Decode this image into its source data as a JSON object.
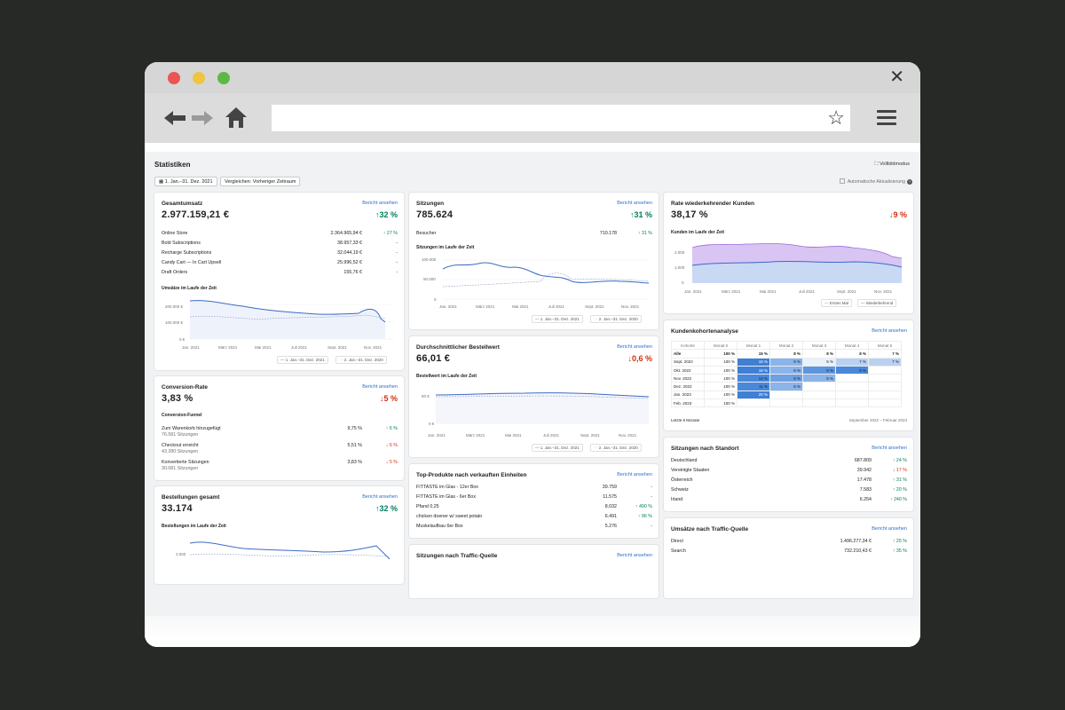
{
  "page": {
    "title": "Statistiken",
    "fullscreen": "Vollbildmodus",
    "date_range": "1. Jan.–31. Dez. 2021",
    "compare": "Vergleichen: Vorheriger Zeitraum",
    "auto_update": "Automatische Aktualisierung"
  },
  "common": {
    "view_report": "Bericht ansehen"
  },
  "legend": {
    "current": "1. Jan.–31. Dez. 2021",
    "previous": "2. Jan.–31. Dez. 2020"
  },
  "months_axis": [
    "Jan. 2021",
    "März 2021",
    "Mai 2021",
    "Juli 2021",
    "Sept. 2021",
    "Nov. 2021"
  ],
  "sales": {
    "title": "Gesamtumsatz",
    "value": "2.977.159,21 €",
    "change": "32 %",
    "rows": [
      {
        "label": "Online Store",
        "value": "2.364.965,94 €",
        "change": "27 %"
      },
      {
        "label": "Bold Subscriptions",
        "value": "38.957,33 €",
        "change": "-"
      },
      {
        "label": "Recharge Subscriptions",
        "value": "32.044,19 €",
        "change": "-"
      },
      {
        "label": "Candy Cart — In Cart Upsell",
        "value": "25.996,52 €",
        "change": "-"
      },
      {
        "label": "Draft Orders",
        "value": "155,76 €",
        "change": "-"
      }
    ],
    "chart_label": "Umsätze im Laufe der Zeit",
    "y_ticks": [
      "200.000 €",
      "100.000 €",
      "0 €"
    ]
  },
  "conversion": {
    "title": "Conversion-Rate",
    "value": "3,83 %",
    "change": "5 %",
    "funnel_label": "Conversion-Funnel",
    "rows": [
      {
        "label": "Zum Warenkorb hinzugefügt",
        "sub": "76.581 Sitzungen",
        "value": "9,75 %",
        "change": "6 %",
        "dir": "up"
      },
      {
        "label": "Checkout erreicht",
        "sub": "43.280 Sitzungen",
        "value": "5,51 %",
        "change": "6 %",
        "dir": "down"
      },
      {
        "label": "Konvertierte Sitzungen",
        "sub": "30.081 Sitzungen",
        "value": "3,83 %",
        "change": "5 %",
        "dir": "down"
      }
    ]
  },
  "orders": {
    "title": "Bestellungen gesamt",
    "value": "33.174",
    "change": "32 %",
    "chart_label": "Bestellungen im Laufe der Zeit",
    "y_tick": "2.000"
  },
  "sessions": {
    "title": "Sitzungen",
    "value": "785.624",
    "change": "31 %",
    "visitors_label": "Besucher",
    "visitors_value": "710.178",
    "visitors_change": "31 %",
    "chart_label": "Sitzungen im Laufe der Zeit",
    "y_ticks": [
      "100.000",
      "50.000",
      "0"
    ]
  },
  "aov": {
    "title": "Durchschnittlicher Bestellwert",
    "value": "66,01 €",
    "change": "0,6 %",
    "chart_label": "Bestellwert im Laufe der Zeit",
    "y_ticks": [
      "50 €",
      "0 €"
    ]
  },
  "top_products": {
    "title": "Top-Produkte nach verkauften Einheiten",
    "rows": [
      {
        "label": "FITTASTE im Glas - 12er Box",
        "value": "39.759",
        "change": "-"
      },
      {
        "label": "FITTASTE im Glas - 6er Box",
        "value": "11.575",
        "change": "-"
      },
      {
        "label": "Pfand 0,25",
        "value": "8.032",
        "change": "490 %"
      },
      {
        "label": "chicken doener w/ sweet potato",
        "value": "6.491",
        "change": "96 %"
      },
      {
        "label": "Muskelaufbau 6er Box",
        "value": "5.276",
        "change": "-"
      }
    ]
  },
  "traffic_sessions": {
    "title": "Sitzungen nach Traffic-Quelle"
  },
  "returning": {
    "title": "Rate wiederkehrender Kunden",
    "value": "38,17 %",
    "change": "9 %",
    "chart_label": "Kunden im Laufe der Zeit",
    "y_ticks": [
      "2.000",
      "1.000",
      "0"
    ],
    "legend_first": "Erstes Mal",
    "legend_returning": "Wiederkehrend"
  },
  "cohort": {
    "title": "Kundenkohortenanalyse",
    "headers": [
      "Kohorte",
      "Monat 0",
      "Monat 1",
      "Monat 2",
      "Monat 3",
      "Monat 4",
      "Monat 5"
    ],
    "rows": [
      [
        "Alle",
        "100 %",
        "15 %",
        "8 %",
        "8 %",
        "8 %",
        "7 %"
      ],
      [
        "Sept. 2022",
        "100 %",
        "15 %",
        "9 %",
        "5 %",
        "7 %",
        "7 %"
      ],
      [
        "Okt. 2022",
        "100 %",
        "18 %",
        "8 %",
        "8 %",
        "9 %",
        ""
      ],
      [
        "Nov. 2022",
        "100 %",
        "13 %",
        "8 %",
        "8 %",
        "",
        ""
      ],
      [
        "Dez. 2022",
        "100 %",
        "11 %",
        "8 %",
        "",
        "",
        ""
      ],
      [
        "Jan. 2023",
        "100 %",
        "20 %",
        "",
        "",
        "",
        ""
      ],
      [
        "Feb. 2023",
        "100 %",
        "",
        "",
        "",
        "",
        ""
      ]
    ],
    "footer_left": "Letzte 6 Monate",
    "footer_right": "September 2022 – Februar 2023"
  },
  "location": {
    "title": "Sitzungen nach Standort",
    "rows": [
      {
        "label": "Deutschland",
        "value": "687.809",
        "change": "24 %",
        "dir": "up"
      },
      {
        "label": "Vereinigte Staaten",
        "value": "39.942",
        "change": "17 %",
        "dir": "down"
      },
      {
        "label": "Österreich",
        "value": "17.478",
        "change": "31 %",
        "dir": "up"
      },
      {
        "label": "Schweiz",
        "value": "7.583",
        "change": "20 %",
        "dir": "up"
      },
      {
        "label": "Irland",
        "value": "6.254",
        "change": "240 %",
        "dir": "up"
      }
    ]
  },
  "traffic_sales": {
    "title": "Umsätze nach Traffic-Quelle",
    "rows": [
      {
        "label": "Direct",
        "value": "1.496.277,34 €",
        "change": "25 %"
      },
      {
        "label": "Search",
        "value": "732.210,43 €",
        "change": "35 %"
      }
    ]
  }
}
